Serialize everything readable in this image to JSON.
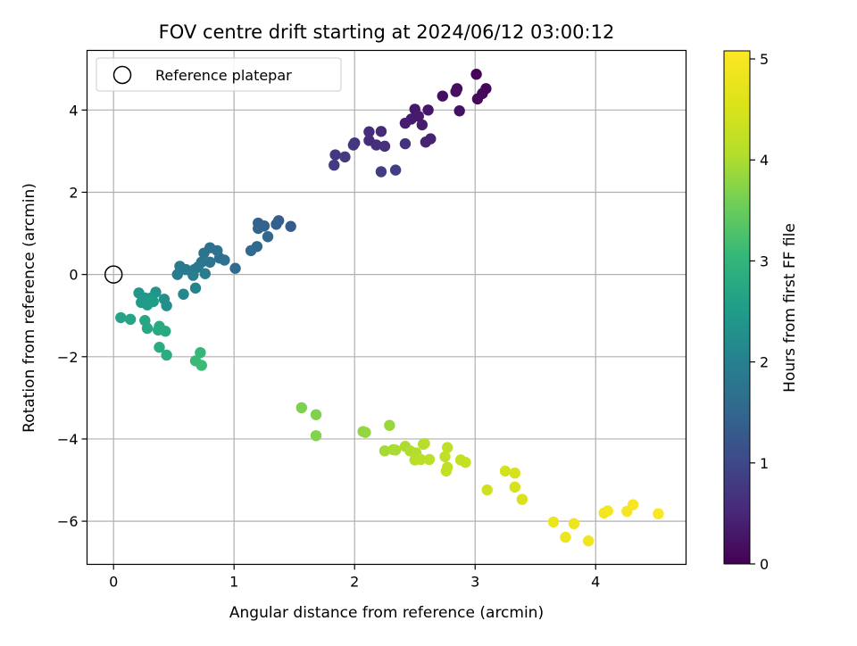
{
  "chart_data": {
    "type": "scatter",
    "title": "FOV centre drift starting at 2024/06/12 03:00:12",
    "xlabel": "Angular distance from reference (arcmin)",
    "ylabel": "Rotation from reference (arcmin)",
    "xlim": [
      -0.22,
      4.75
    ],
    "ylim": [
      -7.05,
      5.45
    ],
    "xticks": [
      0,
      1,
      2,
      3,
      4
    ],
    "yticks": [
      -6,
      -4,
      -2,
      0,
      2,
      4
    ],
    "grid": true,
    "legend": {
      "placement": "top-left",
      "entries": [
        "Reference platepar"
      ]
    },
    "reference_point": {
      "x": 0,
      "y": 0
    },
    "colorbar": {
      "label": "Hours from first FF file",
      "colormap": "viridis",
      "range": [
        0,
        5.08
      ],
      "ticks": [
        0,
        1,
        2,
        3,
        4,
        5
      ]
    },
    "points": [
      {
        "x": 3.01,
        "y": 4.87,
        "h": 0.05
      },
      {
        "x": 3.09,
        "y": 4.52,
        "h": 0.07
      },
      {
        "x": 3.06,
        "y": 4.4,
        "h": 0.09
      },
      {
        "x": 3.02,
        "y": 4.27,
        "h": 0.1
      },
      {
        "x": 2.85,
        "y": 4.52,
        "h": 0.16
      },
      {
        "x": 2.84,
        "y": 4.45,
        "h": 0.17
      },
      {
        "x": 2.73,
        "y": 4.34,
        "h": 0.19
      },
      {
        "x": 2.87,
        "y": 3.98,
        "h": 0.21
      },
      {
        "x": 2.61,
        "y": 4.0,
        "h": 0.28
      },
      {
        "x": 2.5,
        "y": 4.02,
        "h": 0.3
      },
      {
        "x": 2.53,
        "y": 3.85,
        "h": 0.32
      },
      {
        "x": 2.47,
        "y": 3.78,
        "h": 0.34
      },
      {
        "x": 2.56,
        "y": 3.64,
        "h": 0.36
      },
      {
        "x": 2.42,
        "y": 3.68,
        "h": 0.38
      },
      {
        "x": 2.63,
        "y": 3.3,
        "h": 0.42
      },
      {
        "x": 2.59,
        "y": 3.22,
        "h": 0.44
      },
      {
        "x": 2.22,
        "y": 3.48,
        "h": 0.55
      },
      {
        "x": 2.12,
        "y": 3.47,
        "h": 0.57
      },
      {
        "x": 2.12,
        "y": 3.26,
        "h": 0.59
      },
      {
        "x": 2.18,
        "y": 3.15,
        "h": 0.61
      },
      {
        "x": 2.25,
        "y": 3.12,
        "h": 0.63
      },
      {
        "x": 2.42,
        "y": 3.18,
        "h": 0.66
      },
      {
        "x": 2.0,
        "y": 3.2,
        "h": 0.7
      },
      {
        "x": 1.99,
        "y": 3.15,
        "h": 0.72
      },
      {
        "x": 1.84,
        "y": 2.91,
        "h": 0.76
      },
      {
        "x": 1.92,
        "y": 2.86,
        "h": 0.78
      },
      {
        "x": 1.83,
        "y": 2.66,
        "h": 0.8
      },
      {
        "x": 2.22,
        "y": 2.5,
        "h": 0.83
      },
      {
        "x": 2.34,
        "y": 2.54,
        "h": 0.85
      },
      {
        "x": 1.47,
        "y": 1.17,
        "h": 1.35
      },
      {
        "x": 1.37,
        "y": 1.31,
        "h": 1.38
      },
      {
        "x": 1.35,
        "y": 1.22,
        "h": 1.4
      },
      {
        "x": 1.2,
        "y": 1.25,
        "h": 1.43
      },
      {
        "x": 1.25,
        "y": 1.18,
        "h": 1.45
      },
      {
        "x": 1.2,
        "y": 1.12,
        "h": 1.47
      },
      {
        "x": 1.28,
        "y": 0.92,
        "h": 1.5
      },
      {
        "x": 1.19,
        "y": 0.68,
        "h": 1.55
      },
      {
        "x": 1.14,
        "y": 0.58,
        "h": 1.57
      },
      {
        "x": 1.01,
        "y": 0.15,
        "h": 1.62
      },
      {
        "x": 0.88,
        "y": 0.4,
        "h": 1.66
      },
      {
        "x": 0.92,
        "y": 0.35,
        "h": 1.68
      },
      {
        "x": 0.8,
        "y": 0.65,
        "h": 1.7
      },
      {
        "x": 0.86,
        "y": 0.58,
        "h": 1.72
      },
      {
        "x": 0.75,
        "y": 0.52,
        "h": 1.74
      },
      {
        "x": 0.73,
        "y": 0.3,
        "h": 1.77
      },
      {
        "x": 0.8,
        "y": 0.3,
        "h": 1.79
      },
      {
        "x": 0.7,
        "y": 0.18,
        "h": 1.81
      },
      {
        "x": 0.67,
        "y": 0.12,
        "h": 1.84
      },
      {
        "x": 0.6,
        "y": 0.12,
        "h": 1.86
      },
      {
        "x": 0.55,
        "y": 0.2,
        "h": 1.88
      },
      {
        "x": 0.53,
        "y": 0.0,
        "h": 1.9
      },
      {
        "x": 0.66,
        "y": -0.02,
        "h": 1.93
      },
      {
        "x": 0.76,
        "y": 0.02,
        "h": 1.95
      },
      {
        "x": 0.68,
        "y": -0.33,
        "h": 2.05
      },
      {
        "x": 0.58,
        "y": -0.48,
        "h": 2.1
      },
      {
        "x": 0.44,
        "y": -0.76,
        "h": 2.25
      },
      {
        "x": 0.42,
        "y": -0.6,
        "h": 2.3
      },
      {
        "x": 0.35,
        "y": -0.43,
        "h": 2.35
      },
      {
        "x": 0.21,
        "y": -0.45,
        "h": 2.4
      },
      {
        "x": 0.26,
        "y": -0.57,
        "h": 2.42
      },
      {
        "x": 0.31,
        "y": -0.57,
        "h": 2.45
      },
      {
        "x": 0.23,
        "y": -0.68,
        "h": 2.48
      },
      {
        "x": 0.28,
        "y": -0.74,
        "h": 2.5
      },
      {
        "x": 0.33,
        "y": -0.66,
        "h": 2.52
      },
      {
        "x": 0.06,
        "y": -1.05,
        "h": 2.65
      },
      {
        "x": 0.14,
        "y": -1.09,
        "h": 2.68
      },
      {
        "x": 0.26,
        "y": -1.12,
        "h": 2.7
      },
      {
        "x": 0.28,
        "y": -1.31,
        "h": 2.72
      },
      {
        "x": 0.37,
        "y": -1.35,
        "h": 2.74
      },
      {
        "x": 0.38,
        "y": -1.26,
        "h": 2.76
      },
      {
        "x": 0.43,
        "y": -1.38,
        "h": 2.78
      },
      {
        "x": 0.38,
        "y": -1.77,
        "h": 2.82
      },
      {
        "x": 0.44,
        "y": -1.96,
        "h": 2.85
      },
      {
        "x": 0.72,
        "y": -1.9,
        "h": 3.05
      },
      {
        "x": 0.68,
        "y": -2.1,
        "h": 3.08
      },
      {
        "x": 0.73,
        "y": -2.21,
        "h": 3.1
      },
      {
        "x": 1.56,
        "y": -3.24,
        "h": 3.65
      },
      {
        "x": 1.68,
        "y": -3.41,
        "h": 3.68
      },
      {
        "x": 1.68,
        "y": -3.92,
        "h": 3.7
      },
      {
        "x": 2.07,
        "y": -3.82,
        "h": 3.8
      },
      {
        "x": 2.09,
        "y": -3.84,
        "h": 3.82
      },
      {
        "x": 2.29,
        "y": -3.67,
        "h": 3.85
      },
      {
        "x": 2.25,
        "y": -4.29,
        "h": 3.95
      },
      {
        "x": 2.32,
        "y": -4.26,
        "h": 3.97
      },
      {
        "x": 2.34,
        "y": -4.27,
        "h": 3.99
      },
      {
        "x": 2.42,
        "y": -4.18,
        "h": 4.01
      },
      {
        "x": 2.46,
        "y": -4.29,
        "h": 4.03
      },
      {
        "x": 2.51,
        "y": -4.34,
        "h": 4.05
      },
      {
        "x": 2.57,
        "y": -4.13,
        "h": 4.07
      },
      {
        "x": 2.58,
        "y": -4.11,
        "h": 4.09
      },
      {
        "x": 2.5,
        "y": -4.51,
        "h": 4.11
      },
      {
        "x": 2.55,
        "y": -4.5,
        "h": 4.13
      },
      {
        "x": 2.62,
        "y": -4.5,
        "h": 4.15
      },
      {
        "x": 2.77,
        "y": -4.21,
        "h": 4.18
      },
      {
        "x": 2.75,
        "y": -4.43,
        "h": 4.2
      },
      {
        "x": 2.77,
        "y": -4.69,
        "h": 4.22
      },
      {
        "x": 2.76,
        "y": -4.78,
        "h": 4.24
      },
      {
        "x": 2.88,
        "y": -4.51,
        "h": 4.26
      },
      {
        "x": 2.92,
        "y": -4.57,
        "h": 4.28
      },
      {
        "x": 3.1,
        "y": -5.24,
        "h": 4.4
      },
      {
        "x": 3.25,
        "y": -4.78,
        "h": 4.45
      },
      {
        "x": 3.33,
        "y": -4.83,
        "h": 4.47
      },
      {
        "x": 3.33,
        "y": -5.17,
        "h": 4.5
      },
      {
        "x": 3.39,
        "y": -5.47,
        "h": 4.52
      },
      {
        "x": 3.65,
        "y": -6.02,
        "h": 4.8
      },
      {
        "x": 3.75,
        "y": -6.39,
        "h": 4.83
      },
      {
        "x": 3.82,
        "y": -6.06,
        "h": 4.85
      },
      {
        "x": 3.94,
        "y": -6.48,
        "h": 4.87
      },
      {
        "x": 4.07,
        "y": -5.8,
        "h": 4.92
      },
      {
        "x": 4.1,
        "y": -5.75,
        "h": 4.94
      },
      {
        "x": 4.26,
        "y": -5.76,
        "h": 4.97
      },
      {
        "x": 4.31,
        "y": -5.6,
        "h": 4.99
      },
      {
        "x": 4.52,
        "y": -5.82,
        "h": 5.02
      }
    ]
  }
}
